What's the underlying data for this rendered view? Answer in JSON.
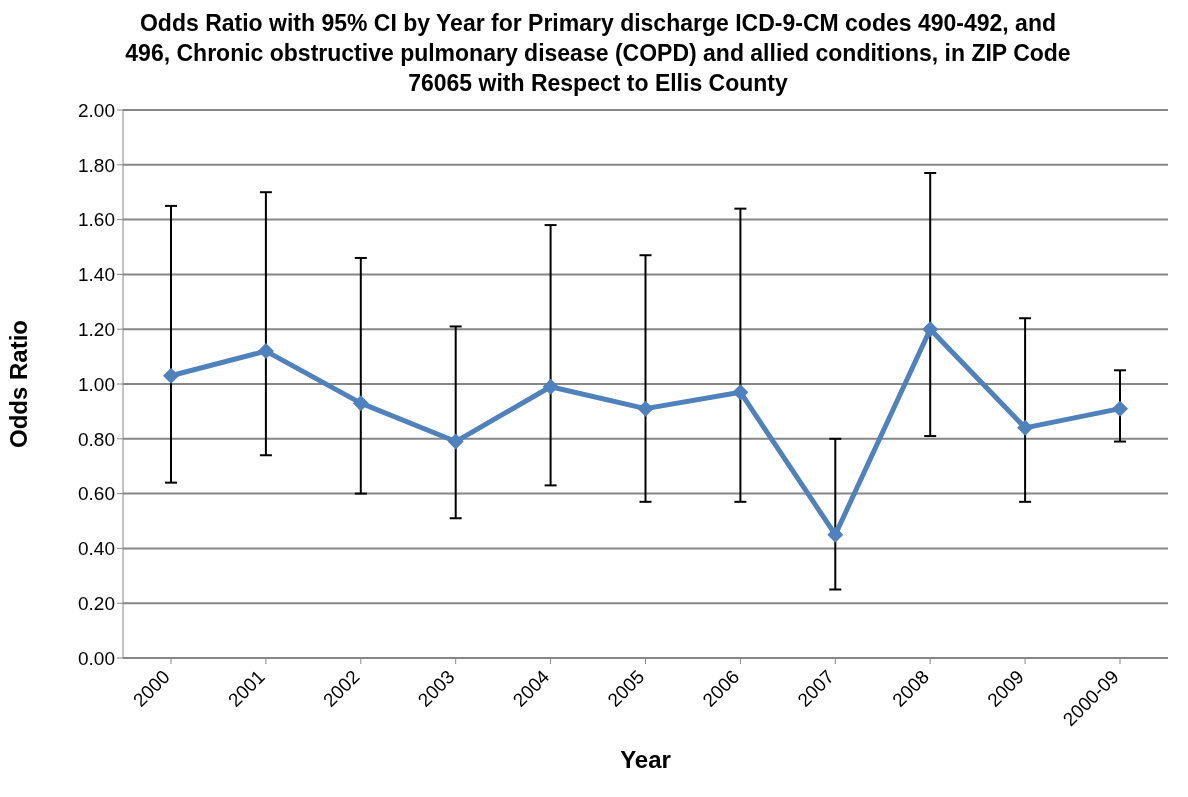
{
  "chart_data": {
    "type": "line",
    "title": "Odds Ratio with 95% CI by Year for Primary discharge ICD-9-CM codes 490-492, and 496, Chronic obstructive pulmonary disease (COPD) and allied conditions, in ZIP Code 76065 with Respect to Ellis County",
    "xlabel": "Year",
    "ylabel": "Odds Ratio",
    "categories": [
      "2000",
      "2001",
      "2002",
      "2003",
      "2004",
      "2005",
      "2006",
      "2007",
      "2008",
      "2009",
      "2000-09"
    ],
    "series": [
      {
        "color": "#4f81bd",
        "values": [
          1.03,
          1.12,
          0.93,
          0.79,
          0.99,
          0.91,
          0.97,
          0.45,
          1.2,
          0.84,
          0.91
        ],
        "errors": [
          [
            0.64,
            1.65
          ],
          [
            0.74,
            1.7
          ],
          [
            0.6,
            1.46
          ],
          [
            0.51,
            1.21
          ],
          [
            0.63,
            1.58
          ],
          [
            0.57,
            1.47
          ],
          [
            0.57,
            1.64
          ],
          [
            0.25,
            0.8
          ],
          [
            0.81,
            1.77
          ],
          [
            0.57,
            1.24
          ],
          [
            0.79,
            1.05
          ]
        ]
      }
    ],
    "ylim": [
      0,
      2
    ],
    "yticks": [
      {
        "value": 0,
        "label": "0.00"
      },
      {
        "value": 0.2,
        "label": "0.20"
      },
      {
        "value": 0.4,
        "label": "0.40"
      },
      {
        "value": 0.6,
        "label": "0.60"
      },
      {
        "value": 0.8,
        "label": "0.80"
      },
      {
        "value": 1,
        "label": "1.00"
      },
      {
        "value": 1.2,
        "label": "1.20"
      },
      {
        "value": 1.4,
        "label": "1.40"
      },
      {
        "value": 1.6,
        "label": "1.60"
      },
      {
        "value": 1.8,
        "label": "1.80"
      },
      {
        "value": 2,
        "label": "2.00"
      }
    ],
    "grid": "y",
    "marker": "diamond",
    "line_style": "solid"
  }
}
